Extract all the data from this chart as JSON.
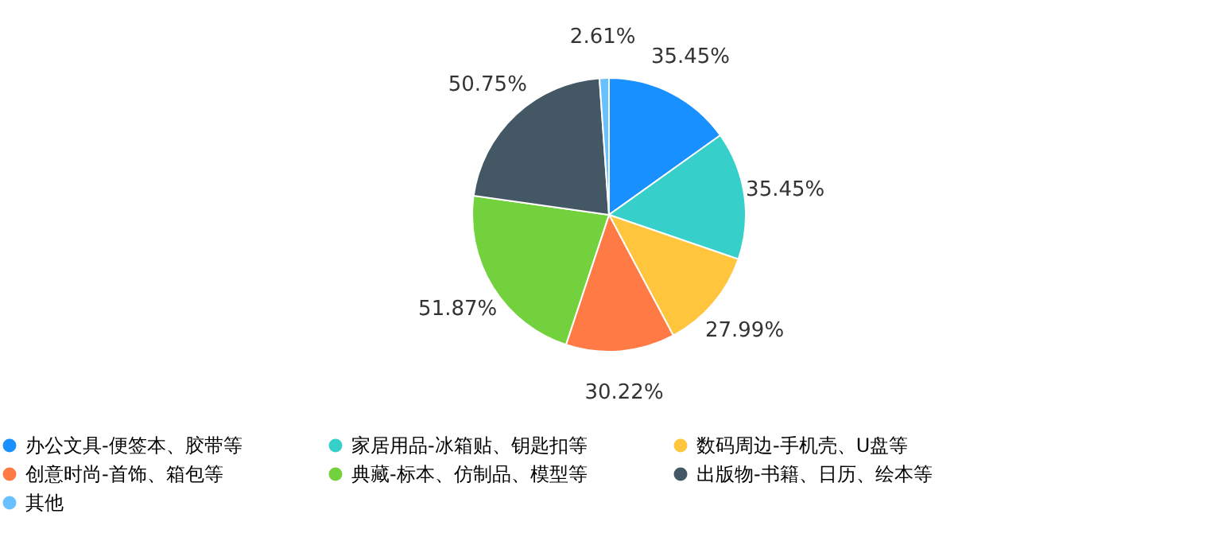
{
  "chart_data": {
    "type": "pie",
    "categories": [
      "办公文具-便签本、胶带等",
      "家居用品-冰箱贴、钥匙扣等",
      "数码周边-手机壳、U盘等",
      "创意时尚-首饰、箱包等",
      "典藏-标本、仿制品、模型等",
      "出版物-书籍、日历、绘本等",
      "其他"
    ],
    "values": [
      35.45,
      35.45,
      27.99,
      30.22,
      51.87,
      50.75,
      2.61
    ],
    "colors": [
      "#1890ff",
      "#36cfc9",
      "#ffc53d",
      "#ff7a45",
      "#73d13d",
      "#435764",
      "#69c0ff"
    ],
    "value_labels": [
      "35.45%",
      "35.45%",
      "27.99%",
      "30.22%",
      "51.87%",
      "50.75%",
      "2.61%"
    ],
    "legend": "bottom"
  }
}
